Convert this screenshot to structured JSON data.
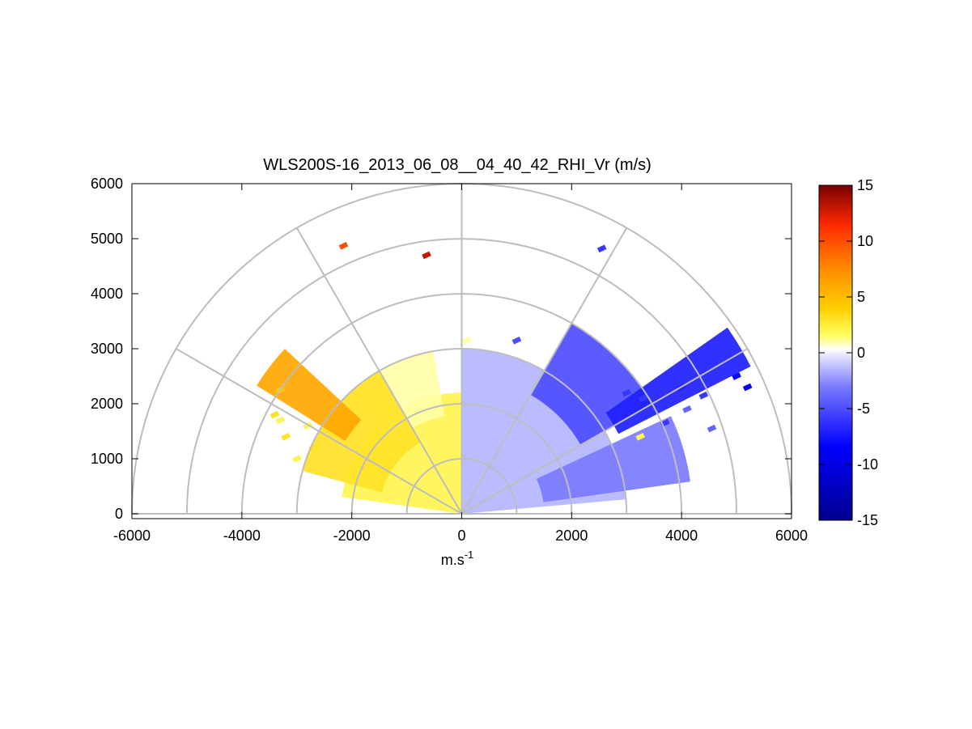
{
  "chart_data": {
    "type": "heatmap",
    "subtype": "polar-rhi",
    "title": "WLS200S-16_2013_06_08__04_40_42_RHI_Vr (m/s)",
    "xlabel": "m.s",
    "xlabel_superscript": "-1",
    "ylabel": "",
    "xlim": [
      -6000,
      6000
    ],
    "ylim": [
      0,
      6000
    ],
    "xticks": [
      -6000,
      -4000,
      -2000,
      0,
      2000,
      4000,
      6000
    ],
    "yticks": [
      0,
      1000,
      2000,
      3000,
      4000,
      5000,
      6000
    ],
    "range_rings": [
      1000,
      2000,
      3000,
      4000,
      5000,
      6000
    ],
    "spokes_deg": [
      0,
      30,
      60,
      90,
      120,
      150,
      180
    ],
    "grid": true,
    "colorbar": {
      "ticks": [
        15,
        10,
        5,
        0,
        -5,
        -10,
        -15
      ],
      "range": [
        -15,
        15
      ],
      "colors": [
        "#00008b",
        "#0000ff",
        "#7b7bff",
        "#e3e3ff",
        "#ffffff",
        "#ffff66",
        "#ffd000",
        "#ff8c00",
        "#ff2a00",
        "#7a0000"
      ]
    },
    "regions": [
      {
        "name": "near-field-left-yellow",
        "value": 2,
        "elev_deg": [
          90,
          172
        ],
        "range_m": [
          50,
          2200
        ]
      },
      {
        "name": "left-pale-yellow",
        "value": 1,
        "elev_deg": [
          100,
          135
        ],
        "range_m": [
          1800,
          3000
        ]
      },
      {
        "name": "left-yellow",
        "value": 3,
        "elev_deg": [
          120,
          165
        ],
        "range_m": [
          1500,
          3000
        ]
      },
      {
        "name": "left-orange-band",
        "value": 6,
        "elev_deg": [
          137,
          148
        ],
        "range_m": [
          2500,
          4400
        ]
      },
      {
        "name": "right-pale-blue",
        "value": -1.5,
        "elev_deg": [
          5,
          90
        ],
        "range_m": [
          50,
          3000
        ]
      },
      {
        "name": "right-light-blue",
        "value": -3,
        "elev_deg": [
          8,
          25
        ],
        "range_m": [
          1500,
          4200
        ]
      },
      {
        "name": "right-blue",
        "value": -5,
        "elev_deg": [
          30,
          60
        ],
        "range_m": [
          2500,
          4000
        ]
      },
      {
        "name": "right-blue-band",
        "value": -7,
        "elev_deg": [
          27,
          35
        ],
        "range_m": [
          3200,
          5900
        ]
      }
    ],
    "points": [
      {
        "x": -2150,
        "y": 4870,
        "value": 10
      },
      {
        "x": -640,
        "y": 4700,
        "value": 13
      },
      {
        "x": 2550,
        "y": 4820,
        "value": -6
      },
      {
        "x": 90,
        "y": 3150,
        "value": 1
      },
      {
        "x": 1000,
        "y": 3150,
        "value": -5
      },
      {
        "x": 3000,
        "y": 2200,
        "value": -6
      },
      {
        "x": 3300,
        "y": 2100,
        "value": -6
      },
      {
        "x": 3700,
        "y": 1650,
        "value": -6
      },
      {
        "x": 4000,
        "y": 2300,
        "value": -7
      },
      {
        "x": 4100,
        "y": 1900,
        "value": -4
      },
      {
        "x": 4400,
        "y": 2150,
        "value": -6
      },
      {
        "x": 4550,
        "y": 1550,
        "value": -4
      },
      {
        "x": 3250,
        "y": 1400,
        "value": 2
      },
      {
        "x": 5000,
        "y": 2500,
        "value": -8
      },
      {
        "x": 5200,
        "y": 2300,
        "value": -9
      },
      {
        "x": -3300,
        "y": 1700,
        "value": 2
      },
      {
        "x": -3200,
        "y": 1400,
        "value": 3
      },
      {
        "x": -3000,
        "y": 1000,
        "value": 2
      },
      {
        "x": -3400,
        "y": 1800,
        "value": 3
      },
      {
        "x": -2800,
        "y": 1600,
        "value": 2
      },
      {
        "x": -2700,
        "y": 1200,
        "value": 3
      },
      {
        "x": -3300,
        "y": 2250,
        "value": 4
      }
    ]
  }
}
